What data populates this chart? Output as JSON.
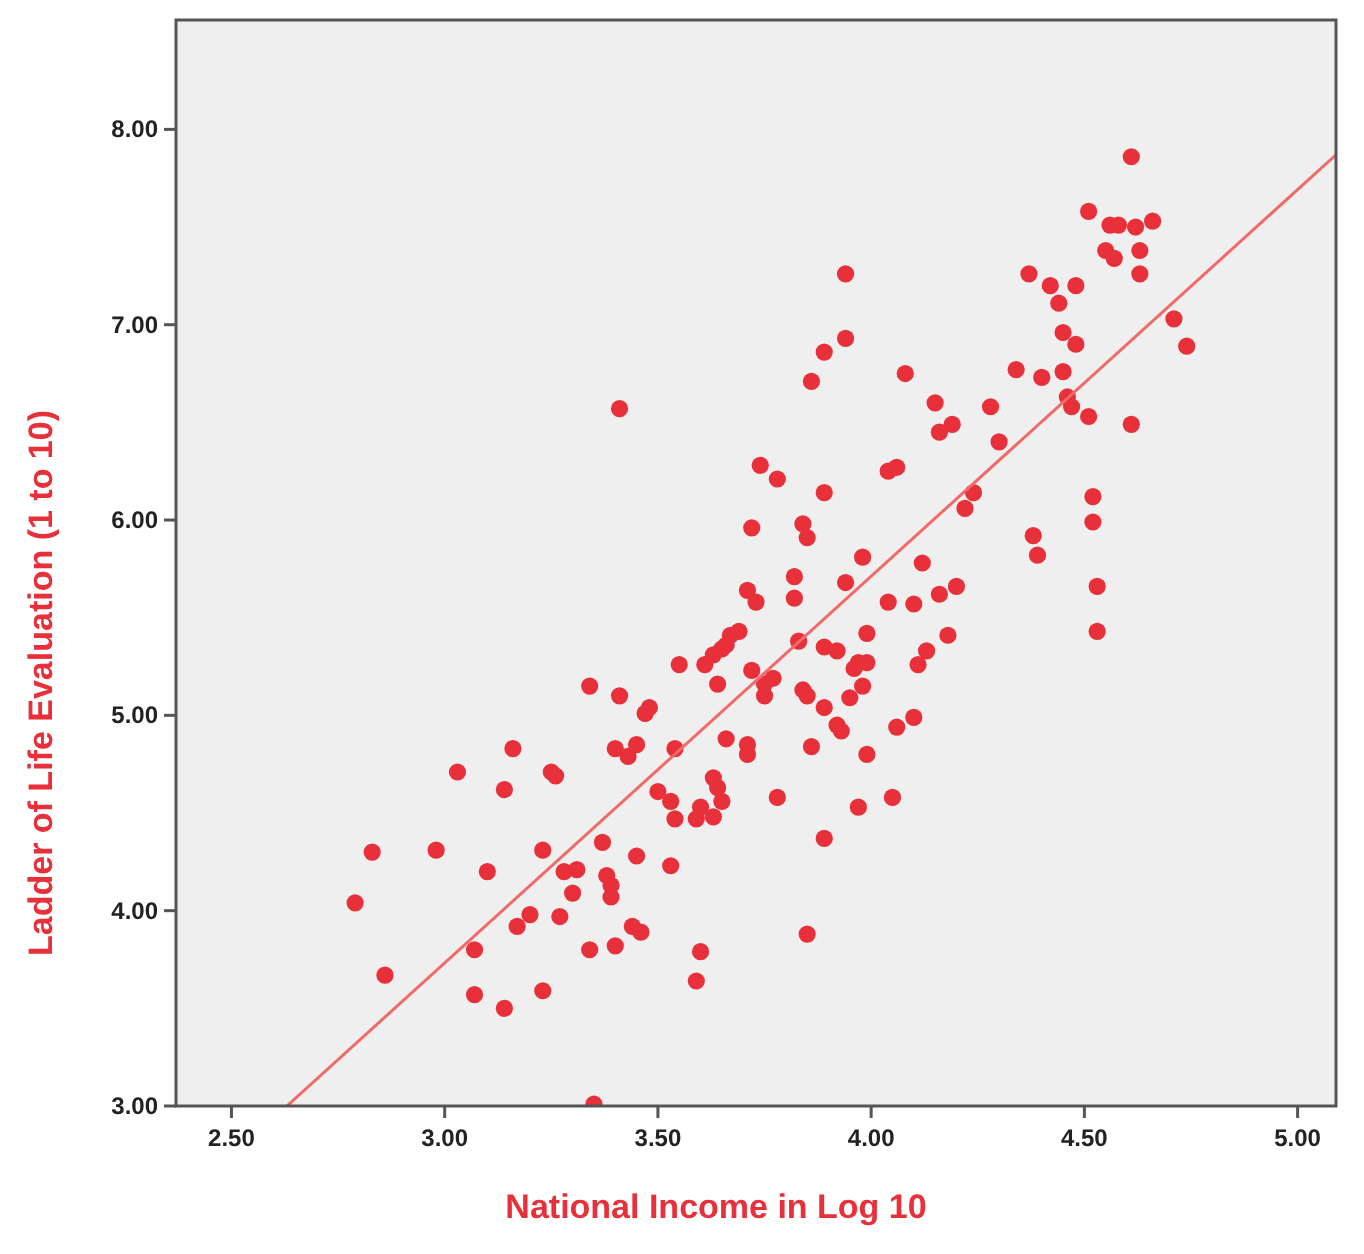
{
  "chart_data": {
    "type": "scatter",
    "xlabel": "National Income in Log 10",
    "ylabel": "Ladder of Life Evaluation (1 to 10)",
    "xlim": [
      2.37,
      5.09
    ],
    "ylim": [
      3.0,
      8.56
    ],
    "xticks": [
      {
        "value": 2.5,
        "label": "2.50"
      },
      {
        "value": 3,
        "label": "3.00"
      },
      {
        "value": 3.5,
        "label": "3.50"
      },
      {
        "value": 4,
        "label": "4.00"
      },
      {
        "value": 4.5,
        "label": "4.50"
      },
      {
        "value": 5,
        "label": "5.00"
      }
    ],
    "yticks": [
      {
        "value": 3,
        "label": "3.00"
      },
      {
        "value": 4,
        "label": "4.00"
      },
      {
        "value": 5,
        "label": "5.00"
      },
      {
        "value": 6,
        "label": "6.00"
      },
      {
        "value": 7,
        "label": "7.00"
      },
      {
        "value": 8,
        "label": "8.00"
      }
    ],
    "grid": false,
    "marker": "circle",
    "series": [
      {
        "color": "#e8303a",
        "x": [
          2.79,
          2.83,
          2.86,
          2.98,
          3.03,
          3.07,
          3.07,
          3.1,
          3.14,
          3.16,
          3.14,
          3.17,
          3.2,
          3.23,
          3.23,
          3.25,
          3.26,
          3.27,
          3.28,
          3.31,
          3.3,
          3.34,
          3.34,
          3.35,
          3.37,
          3.38,
          3.39,
          3.39,
          3.4,
          3.4,
          3.41,
          3.41,
          3.43,
          3.45,
          3.45,
          3.44,
          3.46,
          3.47,
          3.48,
          3.5,
          3.53,
          3.53,
          3.54,
          3.54,
          3.55,
          3.59,
          3.59,
          3.6,
          3.6,
          3.61,
          3.63,
          3.63,
          3.64,
          3.65,
          3.64,
          3.63,
          3.65,
          3.66,
          3.67,
          3.69,
          3.66,
          3.71,
          3.73,
          3.72,
          3.74,
          3.78,
          3.72,
          3.71,
          3.71,
          3.75,
          3.75,
          3.77,
          3.78,
          3.82,
          3.82,
          3.84,
          3.85,
          3.83,
          3.84,
          3.85,
          3.86,
          3.86,
          3.85,
          3.89,
          3.89,
          3.89,
          3.89,
          3.89,
          3.92,
          3.92,
          3.93,
          3.94,
          3.94,
          3.94,
          3.95,
          3.96,
          3.97,
          3.97,
          3.98,
          3.99,
          3.99,
          3.98,
          3.99,
          4.04,
          4.06,
          4.04,
          4.06,
          4.05,
          4.08,
          4.1,
          4.1,
          4.11,
          4.12,
          4.13,
          4.15,
          4.16,
          4.16,
          4.19,
          4.18,
          4.2,
          4.22,
          4.24,
          4.28,
          4.3,
          4.34,
          4.37,
          4.38,
          4.39,
          4.4,
          4.42,
          4.44,
          4.45,
          4.45,
          4.46,
          4.47,
          4.48,
          4.48,
          4.51,
          4.51,
          4.52,
          4.52,
          4.53,
          4.53,
          4.55,
          4.57,
          4.56,
          4.58,
          4.61,
          4.61,
          4.62,
          4.63,
          4.63,
          4.66,
          4.71,
          4.74
        ],
        "values": [
          4.04,
          4.3,
          3.67,
          4.31,
          4.71,
          3.8,
          3.57,
          4.2,
          4.62,
          4.83,
          3.5,
          3.92,
          3.98,
          4.31,
          3.59,
          4.71,
          4.69,
          3.97,
          4.2,
          4.21,
          4.09,
          5.15,
          3.8,
          3.01,
          4.35,
          4.18,
          4.13,
          4.07,
          4.83,
          3.82,
          6.57,
          5.1,
          4.79,
          4.28,
          4.85,
          3.92,
          3.89,
          5.01,
          5.04,
          4.61,
          4.56,
          4.23,
          4.47,
          4.83,
          5.26,
          4.47,
          3.64,
          3.79,
          4.53,
          5.26,
          4.48,
          4.68,
          4.63,
          4.56,
          5.16,
          5.31,
          5.34,
          5.36,
          5.41,
          5.43,
          4.88,
          5.64,
          5.58,
          5.96,
          6.28,
          6.21,
          5.23,
          4.85,
          4.8,
          5.1,
          5.16,
          5.19,
          4.58,
          5.71,
          5.6,
          5.98,
          5.91,
          5.38,
          5.13,
          5.1,
          6.71,
          4.84,
          3.88,
          5.35,
          5.04,
          6.86,
          6.14,
          4.37,
          5.33,
          4.95,
          4.92,
          7.26,
          6.93,
          5.68,
          5.09,
          5.24,
          5.27,
          4.53,
          5.81,
          5.42,
          5.27,
          5.15,
          4.8,
          6.25,
          6.27,
          5.58,
          4.94,
          4.58,
          6.75,
          5.57,
          4.99,
          5.26,
          5.78,
          5.33,
          6.6,
          6.45,
          5.62,
          6.49,
          5.41,
          5.66,
          6.06,
          6.14,
          6.58,
          6.4,
          6.77,
          7.26,
          5.92,
          5.82,
          6.73,
          7.2,
          7.11,
          6.76,
          6.96,
          6.63,
          6.58,
          7.2,
          6.9,
          7.58,
          6.53,
          6.12,
          5.99,
          5.66,
          5.43,
          7.38,
          7.34,
          7.51,
          7.51,
          7.86,
          6.49,
          7.5,
          7.38,
          7.26,
          7.53,
          7.03,
          6.89
        ]
      },
      {
        "type": "line",
        "color": "#f06a6a",
        "marker": "none",
        "x": [
          2.63,
          5.09
        ],
        "values": [
          3.0,
          7.87
        ]
      }
    ]
  }
}
